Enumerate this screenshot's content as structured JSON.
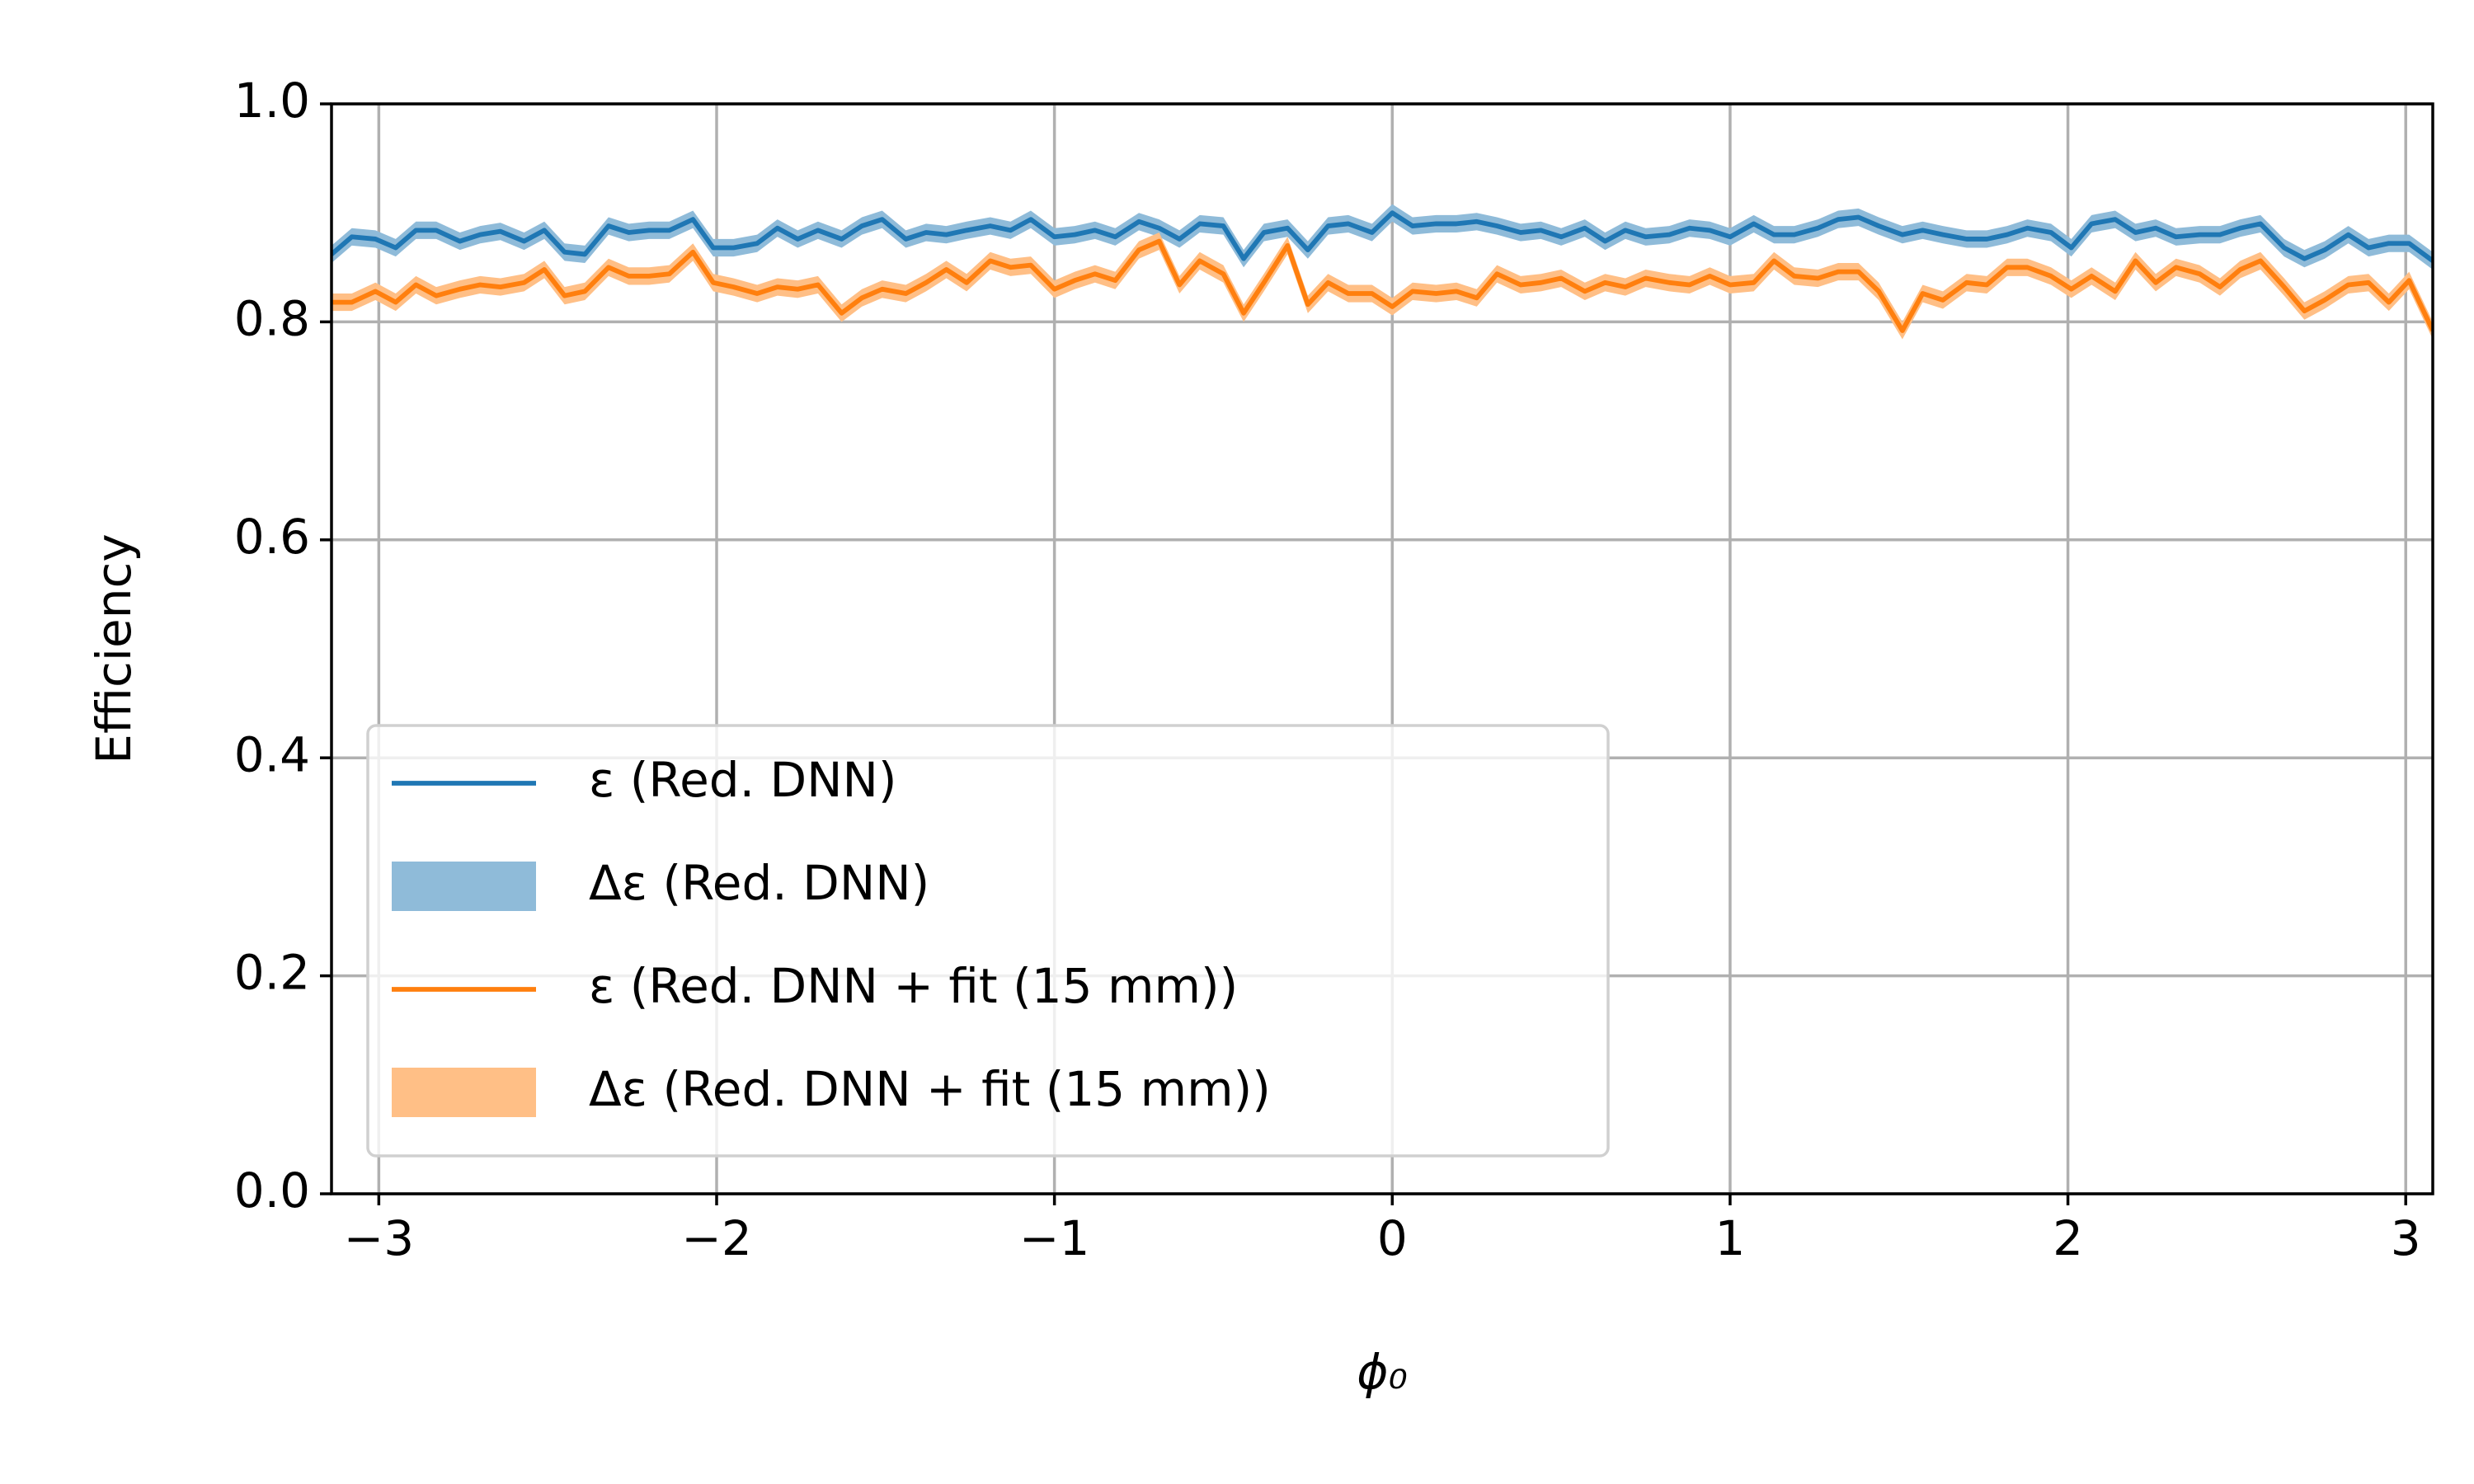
{
  "chart_data": {
    "type": "line",
    "xlabel": "ϕ₀",
    "ylabel": "Efficiency",
    "xlim": [
      -3.14,
      3.08
    ],
    "ylim": [
      0,
      1
    ],
    "xticks": [
      {
        "value": -3,
        "label": "−3"
      },
      {
        "value": -2,
        "label": "−2"
      },
      {
        "value": -1,
        "label": "−1"
      },
      0,
      1,
      2,
      3
    ],
    "yticks": [
      {
        "value": 0,
        "label": "0.0"
      },
      0.2,
      0.4,
      0.6,
      0.8,
      {
        "value": 1,
        "label": "1.0"
      }
    ],
    "grid": true,
    "legend": "lower left",
    "x": [
      -3.14,
      -3.08,
      -3.01,
      -2.95,
      -2.89,
      -2.83,
      -2.76,
      -2.7,
      -2.64,
      -2.57,
      -2.51,
      -2.45,
      -2.39,
      -2.32,
      -2.26,
      -2.2,
      -2.14,
      -2.07,
      -2.01,
      -1.95,
      -1.88,
      -1.82,
      -1.76,
      -1.7,
      -1.63,
      -1.57,
      -1.51,
      -1.44,
      -1.38,
      -1.32,
      -1.26,
      -1.19,
      -1.13,
      -1.07,
      -1.0,
      -0.94,
      -0.88,
      -0.82,
      -0.75,
      -0.69,
      -0.63,
      -0.57,
      -0.5,
      -0.44,
      -0.38,
      -0.31,
      -0.25,
      -0.19,
      -0.13,
      -0.06,
      0.0,
      0.06,
      0.13,
      0.19,
      0.25,
      0.31,
      0.38,
      0.44,
      0.5,
      0.57,
      0.63,
      0.69,
      0.75,
      0.82,
      0.88,
      0.94,
      1.0,
      1.07,
      1.13,
      1.19,
      1.26,
      1.32,
      1.38,
      1.44,
      1.51,
      1.57,
      1.63,
      1.7,
      1.76,
      1.82,
      1.88,
      1.95,
      2.01,
      2.07,
      2.14,
      2.2,
      2.26,
      2.32,
      2.39,
      2.45,
      2.51,
      2.57,
      2.64,
      2.7,
      2.76,
      2.83,
      2.89,
      2.95,
      3.01,
      3.08
    ],
    "series": [
      {
        "name": "ε (Red. DNN)",
        "color": "#1f77b4",
        "values": [
          0.862,
          0.878,
          0.876,
          0.868,
          0.884,
          0.884,
          0.874,
          0.88,
          0.883,
          0.874,
          0.884,
          0.864,
          0.862,
          0.888,
          0.882,
          0.884,
          0.884,
          0.894,
          0.868,
          0.868,
          0.872,
          0.886,
          0.876,
          0.884,
          0.876,
          0.888,
          0.894,
          0.876,
          0.882,
          0.88,
          0.884,
          0.888,
          0.884,
          0.894,
          0.878,
          0.88,
          0.884,
          0.878,
          0.892,
          0.886,
          0.876,
          0.89,
          0.888,
          0.858,
          0.882,
          0.886,
          0.866,
          0.888,
          0.89,
          0.882,
          0.9,
          0.888,
          0.89,
          0.89,
          0.892,
          0.888,
          0.882,
          0.884,
          0.878,
          0.886,
          0.874,
          0.884,
          0.878,
          0.88,
          0.886,
          0.884,
          0.878,
          0.89,
          0.88,
          0.88,
          0.886,
          0.894,
          0.896,
          0.888,
          0.88,
          0.884,
          0.88,
          0.876,
          0.876,
          0.88,
          0.886,
          0.882,
          0.868,
          0.89,
          0.894,
          0.882,
          0.886,
          0.878,
          0.88,
          0.88,
          0.886,
          0.89,
          0.868,
          0.858,
          0.866,
          0.88,
          0.868,
          0.872,
          0.872,
          0.856
        ]
      },
      {
        "name": "ε (Red. DNN + fit (15 mm))",
        "color": "#ff7f0e",
        "values": [
          0.818,
          0.818,
          0.828,
          0.818,
          0.834,
          0.824,
          0.83,
          0.834,
          0.832,
          0.836,
          0.848,
          0.824,
          0.828,
          0.85,
          0.842,
          0.842,
          0.844,
          0.864,
          0.836,
          0.832,
          0.826,
          0.832,
          0.83,
          0.834,
          0.808,
          0.822,
          0.83,
          0.826,
          0.836,
          0.848,
          0.836,
          0.856,
          0.85,
          0.852,
          0.83,
          0.838,
          0.844,
          0.838,
          0.866,
          0.874,
          0.834,
          0.856,
          0.844,
          0.808,
          0.836,
          0.87,
          0.816,
          0.836,
          0.826,
          0.826,
          0.814,
          0.828,
          0.826,
          0.828,
          0.822,
          0.844,
          0.834,
          0.836,
          0.84,
          0.828,
          0.836,
          0.832,
          0.84,
          0.836,
          0.834,
          0.842,
          0.834,
          0.836,
          0.856,
          0.842,
          0.84,
          0.846,
          0.846,
          0.828,
          0.792,
          0.826,
          0.82,
          0.836,
          0.834,
          0.85,
          0.85,
          0.842,
          0.83,
          0.842,
          0.828,
          0.856,
          0.836,
          0.85,
          0.844,
          0.832,
          0.848,
          0.856,
          0.832,
          0.81,
          0.82,
          0.834,
          0.836,
          0.818,
          0.838,
          0.792
        ]
      }
    ],
    "bands": [
      {
        "name": "Δε (Red. DNN)",
        "color": "#8fbbd9",
        "error": 0.008
      },
      {
        "name": "Δε (Red. DNN + fit (15 mm))",
        "color": "#ffbf86",
        "error": 0.008
      }
    ]
  }
}
